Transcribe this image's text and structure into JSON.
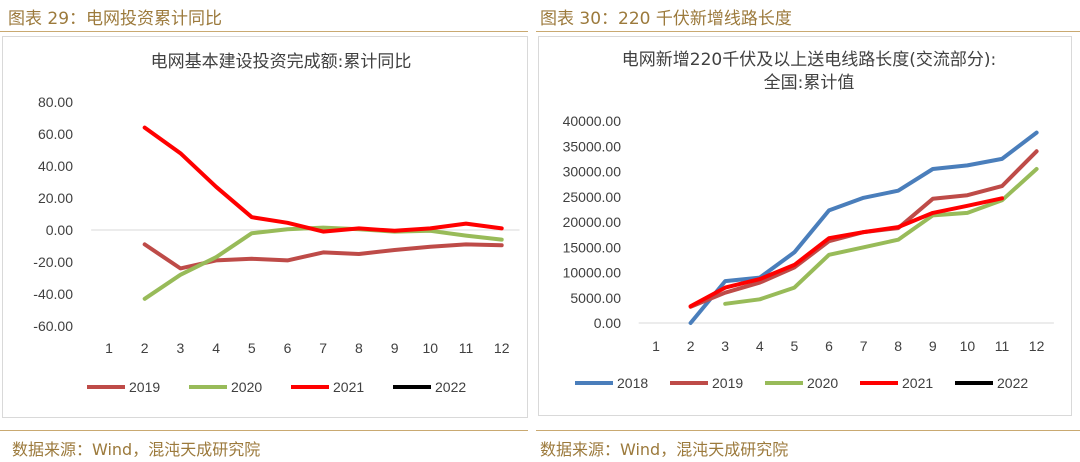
{
  "panels": {
    "left": {
      "heading": "图表 29：电网投资累计同比",
      "source": "数据来源：Wind，混沌天成研究院"
    },
    "right": {
      "heading": "图表 30：220 千伏新增线路长度",
      "source": "数据来源：Wind，混沌天成研究院"
    }
  },
  "colors": {
    "2018": "#4a7ebb",
    "2019": "#be4b48",
    "2020": "#98bb59",
    "2021": "#ff0000",
    "2022": "#000000",
    "heading": "#9c7a3c",
    "rule": "#c9a971"
  },
  "chart_data": [
    {
      "type": "line",
      "title": "电网基本建设投资完成额:累计同比",
      "xlabel": "",
      "ylabel": "",
      "categories": [
        "1",
        "2",
        "3",
        "4",
        "5",
        "6",
        "7",
        "8",
        "9",
        "10",
        "11",
        "12"
      ],
      "ylim": [
        -60,
        80
      ],
      "yticks": [
        "80.00",
        "60.00",
        "40.00",
        "20.00",
        "0.00",
        "-20.00",
        "-40.00",
        "-60.00"
      ],
      "ytick_values": [
        80,
        60,
        40,
        20,
        0,
        -20,
        -40,
        -60
      ],
      "legend_position": "bottom",
      "grid": false,
      "series": [
        {
          "name": "2019",
          "values": [
            null,
            -9,
            -24,
            -19,
            -18,
            -19,
            -14,
            -15,
            -12.5,
            -10.5,
            -9,
            -9.5
          ]
        },
        {
          "name": "2020",
          "values": [
            null,
            -43,
            -28,
            -17,
            -2,
            0.5,
            1.5,
            0.5,
            -1,
            -0.5,
            -3.5,
            -6
          ]
        },
        {
          "name": "2021",
          "values": [
            null,
            64,
            48,
            27,
            8,
            4.5,
            -1,
            1,
            -0.5,
            1,
            4,
            1
          ]
        },
        {
          "name": "2022",
          "values": [
            null,
            null,
            null,
            null,
            null,
            null,
            null,
            null,
            null,
            null,
            null,
            null
          ]
        }
      ]
    },
    {
      "type": "line",
      "title": "电网新增220千伏及以上送电线路长度(交流部分):",
      "subtitle": "全国:累计值",
      "xlabel": "",
      "ylabel": "",
      "categories": [
        "1",
        "2",
        "3",
        "4",
        "5",
        "6",
        "7",
        "8",
        "9",
        "10",
        "11",
        "12"
      ],
      "ylim": [
        0,
        40000
      ],
      "yticks": [
        "40000.00",
        "35000.00",
        "30000.00",
        "25000.00",
        "20000.00",
        "15000.00",
        "10000.00",
        "5000.00",
        "0.00"
      ],
      "ytick_values": [
        40000,
        35000,
        30000,
        25000,
        20000,
        15000,
        10000,
        5000,
        0
      ],
      "legend_position": "bottom",
      "grid": false,
      "series": [
        {
          "name": "2018",
          "values": [
            null,
            0,
            8300,
            9000,
            14000,
            22300,
            24800,
            26200,
            30500,
            31200,
            32500,
            37700
          ]
        },
        {
          "name": "2019",
          "values": [
            null,
            3200,
            6000,
            8000,
            11000,
            16200,
            18000,
            18800,
            24600,
            25300,
            27100,
            34000
          ]
        },
        {
          "name": "2020",
          "values": [
            null,
            null,
            3800,
            4700,
            7000,
            13500,
            15000,
            16500,
            21300,
            21800,
            24300,
            30500
          ]
        },
        {
          "name": "2021",
          "values": [
            null,
            3300,
            7000,
            8700,
            11500,
            16800,
            18000,
            19000,
            21800,
            23200,
            24700,
            null
          ]
        },
        {
          "name": "2022",
          "values": [
            null,
            null,
            null,
            null,
            null,
            null,
            null,
            null,
            null,
            null,
            null,
            null
          ]
        }
      ]
    }
  ]
}
